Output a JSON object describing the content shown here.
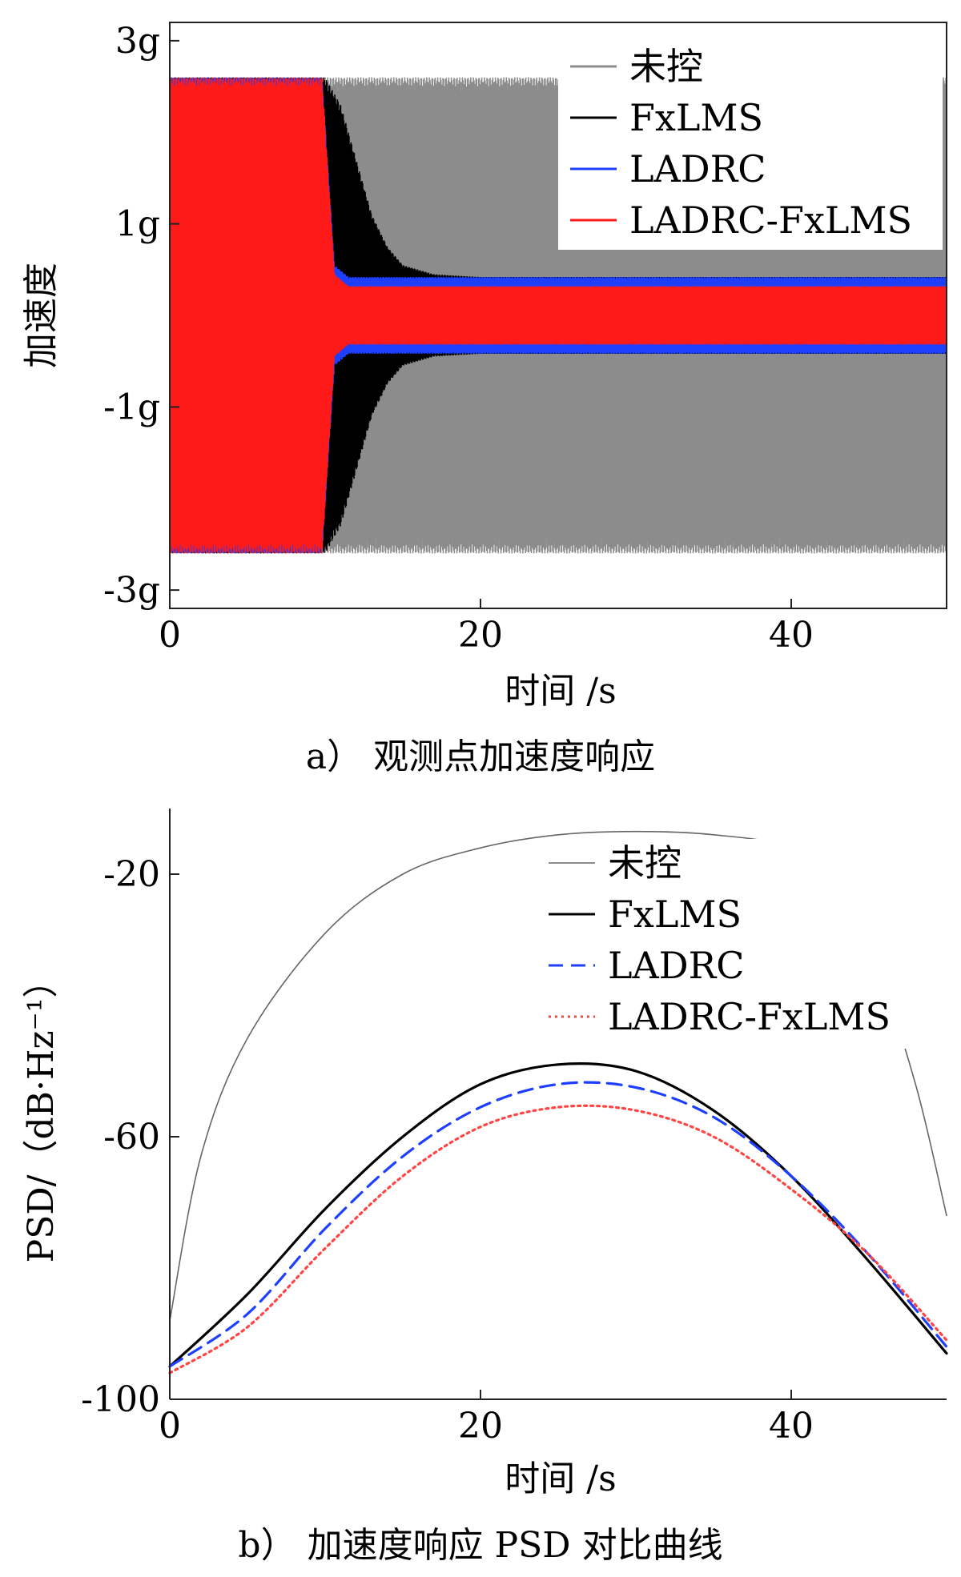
{
  "chart_data": [
    {
      "id": "a",
      "type": "line",
      "caption": "a） 观测点加速度响应",
      "xlabel": "时间 /s",
      "ylabel": "加速度",
      "xlim": [
        0,
        50
      ],
      "ylim": [
        -3.2,
        3.2
      ],
      "xticks": [
        0,
        20,
        40
      ],
      "xtick_labels": [
        "0",
        "20",
        "40"
      ],
      "yticks": [
        3,
        1,
        -1,
        -3
      ],
      "ytick_labels": [
        "3g",
        "1g",
        "-1g",
        "-3g"
      ],
      "legend_position": "top-right",
      "grid": false,
      "series": [
        {
          "name": "未控",
          "color": "#8c8c8c",
          "style": "solid",
          "envelope_x": [
            0,
            50
          ],
          "envelope_amp": [
            2.6,
            2.6
          ]
        },
        {
          "name": "FxLMS",
          "color": "#000000",
          "style": "solid",
          "envelope_x": [
            0,
            10,
            11,
            12,
            13,
            14,
            15,
            17,
            20,
            50
          ],
          "envelope_amp": [
            2.6,
            2.6,
            2.3,
            1.7,
            1.1,
            0.75,
            0.55,
            0.45,
            0.42,
            0.42
          ]
        },
        {
          "name": "LADRC",
          "color": "#1f3fff",
          "style": "solid",
          "envelope_x": [
            0,
            9.8,
            10.6,
            11.5,
            50
          ],
          "envelope_amp": [
            2.6,
            2.6,
            0.55,
            0.42,
            0.42
          ]
        },
        {
          "name": "LADRC-FxLMS",
          "color": "#ff1a1a",
          "style": "solid",
          "envelope_x": [
            0,
            9.8,
            10.6,
            11.5,
            50
          ],
          "envelope_amp": [
            2.6,
            2.6,
            0.45,
            0.32,
            0.32
          ]
        }
      ]
    },
    {
      "id": "b",
      "type": "line",
      "caption": "b） 加速度响应 PSD 对比曲线",
      "xlabel": "时间 /s",
      "ylabel": "PSD/（dB·Hz⁻¹）",
      "xlim": [
        0,
        50
      ],
      "ylim": [
        -100,
        -10
      ],
      "xticks": [
        0,
        20,
        40
      ],
      "xtick_labels": [
        "0",
        "20",
        "40"
      ],
      "yticks": [
        -20,
        -60,
        -100
      ],
      "ytick_labels": [
        "-20",
        "-60",
        "-100"
      ],
      "legend_position": "top-right",
      "grid": false,
      "series": [
        {
          "name": "未控",
          "color": "#666666",
          "style": "solid",
          "width": 1.6,
          "x": [
            0,
            2,
            5,
            10,
            15,
            20,
            25,
            30,
            35,
            40,
            43,
            45,
            48,
            50
          ],
          "y": [
            -88,
            -63,
            -45,
            -29,
            -20,
            -16,
            -14,
            -13.5,
            -14,
            -16,
            -22,
            -30,
            -52,
            -72
          ]
        },
        {
          "name": "FxLMS",
          "color": "#000000",
          "style": "solid",
          "width": 3.2,
          "x": [
            0,
            5,
            10,
            15,
            20,
            25,
            30,
            35,
            40,
            45,
            50
          ],
          "y": [
            -95,
            -84,
            -71,
            -60,
            -52,
            -49,
            -50,
            -56,
            -66,
            -79,
            -93
          ]
        },
        {
          "name": "LADRC",
          "color": "#1f3fff",
          "style": "dashed",
          "width": 3.2,
          "x": [
            0,
            5,
            10,
            15,
            20,
            25,
            30,
            35,
            40,
            45,
            50
          ],
          "y": [
            -95,
            -87,
            -74,
            -63,
            -55.5,
            -52,
            -52.5,
            -57,
            -66,
            -78,
            -92
          ]
        },
        {
          "name": "LADRC-FxLMS",
          "color": "#ff4444",
          "style": "dotted",
          "width": 3.2,
          "x": [
            0,
            5,
            10,
            15,
            20,
            25,
            30,
            35,
            40,
            45,
            50
          ],
          "y": [
            -96,
            -89,
            -77,
            -66,
            -58.5,
            -55.5,
            -56,
            -60,
            -68,
            -78,
            -91
          ]
        }
      ]
    }
  ]
}
